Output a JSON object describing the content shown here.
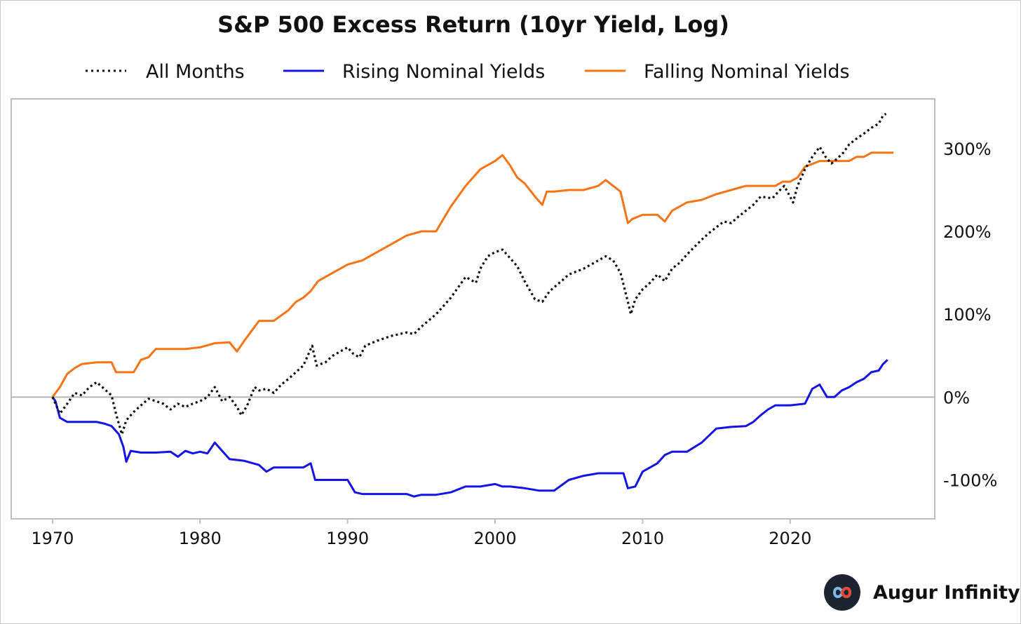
{
  "chart_data": {
    "type": "line",
    "title": "S&P 500 Excess Return (10yr Yield, Log)",
    "xlabel": "",
    "ylabel": "",
    "xlim": [
      1967.2,
      2029.8
    ],
    "ylim": [
      -147,
      360
    ],
    "x_ticks": [
      1970,
      1980,
      1990,
      2000,
      2010,
      2020
    ],
    "y_ticks": [
      300,
      200,
      100,
      0,
      -100
    ],
    "y_tick_labels": [
      "300%",
      "200%",
      "100%",
      "0%",
      "-100%"
    ],
    "zero_line": true,
    "grid": false,
    "legend_position": "top",
    "series": [
      {
        "name": "All Months",
        "color": "#111111",
        "style": "dotted",
        "points": [
          [
            1970.0,
            0
          ],
          [
            1970.5,
            -20
          ],
          [
            1971.0,
            -8
          ],
          [
            1971.5,
            5
          ],
          [
            1972.0,
            2
          ],
          [
            1972.5,
            12
          ],
          [
            1973.0,
            18
          ],
          [
            1973.5,
            10
          ],
          [
            1974.0,
            2
          ],
          [
            1974.3,
            -20
          ],
          [
            1974.7,
            -45
          ],
          [
            1975.0,
            -28
          ],
          [
            1975.5,
            -18
          ],
          [
            1976.0,
            -10
          ],
          [
            1976.5,
            -2
          ],
          [
            1977.0,
            -5
          ],
          [
            1977.5,
            -8
          ],
          [
            1978.0,
            -15
          ],
          [
            1978.5,
            -8
          ],
          [
            1979.0,
            -12
          ],
          [
            1979.5,
            -8
          ],
          [
            1980.0,
            -5
          ],
          [
            1980.5,
            0
          ],
          [
            1981.0,
            12
          ],
          [
            1981.5,
            -5
          ],
          [
            1982.0,
            0
          ],
          [
            1982.5,
            -12
          ],
          [
            1982.8,
            -22
          ],
          [
            1983.2,
            -10
          ],
          [
            1983.7,
            12
          ],
          [
            1984.0,
            8
          ],
          [
            1984.5,
            10
          ],
          [
            1985.0,
            5
          ],
          [
            1985.5,
            15
          ],
          [
            1986.0,
            22
          ],
          [
            1986.5,
            30
          ],
          [
            1987.0,
            38
          ],
          [
            1987.6,
            62
          ],
          [
            1987.9,
            38
          ],
          [
            1988.5,
            42
          ],
          [
            1989.0,
            50
          ],
          [
            1989.5,
            55
          ],
          [
            1990.0,
            60
          ],
          [
            1990.4,
            52
          ],
          [
            1990.8,
            48
          ],
          [
            1991.2,
            62
          ],
          [
            1992.0,
            68
          ],
          [
            1993.0,
            74
          ],
          [
            1994.0,
            78
          ],
          [
            1994.5,
            76
          ],
          [
            1995.0,
            85
          ],
          [
            1996.0,
            100
          ],
          [
            1997.0,
            120
          ],
          [
            1998.0,
            145
          ],
          [
            1998.7,
            138
          ],
          [
            1999.0,
            155
          ],
          [
            1999.5,
            170
          ],
          [
            2000.0,
            175
          ],
          [
            2000.5,
            178
          ],
          [
            2001.0,
            168
          ],
          [
            2001.5,
            158
          ],
          [
            2002.0,
            140
          ],
          [
            2002.7,
            118
          ],
          [
            2003.2,
            115
          ],
          [
            2003.7,
            128
          ],
          [
            2004.5,
            140
          ],
          [
            2005.0,
            148
          ],
          [
            2006.0,
            155
          ],
          [
            2007.0,
            165
          ],
          [
            2007.5,
            170
          ],
          [
            2008.0,
            165
          ],
          [
            2008.5,
            150
          ],
          [
            2009.0,
            115
          ],
          [
            2009.2,
            100
          ],
          [
            2009.5,
            118
          ],
          [
            2010.0,
            130
          ],
          [
            2010.5,
            138
          ],
          [
            2011.0,
            148
          ],
          [
            2011.5,
            140
          ],
          [
            2012.0,
            155
          ],
          [
            2012.5,
            162
          ],
          [
            2013.0,
            172
          ],
          [
            2014.0,
            190
          ],
          [
            2014.5,
            198
          ],
          [
            2015.0,
            205
          ],
          [
            2015.5,
            212
          ],
          [
            2016.0,
            210
          ],
          [
            2016.5,
            218
          ],
          [
            2017.0,
            225
          ],
          [
            2017.5,
            232
          ],
          [
            2018.0,
            242
          ],
          [
            2018.8,
            240
          ],
          [
            2019.2,
            248
          ],
          [
            2019.6,
            255
          ],
          [
            2020.2,
            235
          ],
          [
            2020.5,
            255
          ],
          [
            2021.0,
            275
          ],
          [
            2021.5,
            290
          ],
          [
            2022.0,
            302
          ],
          [
            2022.4,
            290
          ],
          [
            2022.8,
            282
          ],
          [
            2023.2,
            288
          ],
          [
            2023.6,
            295
          ],
          [
            2024.0,
            305
          ],
          [
            2024.5,
            312
          ],
          [
            2025.0,
            318
          ],
          [
            2025.5,
            325
          ],
          [
            2026.0,
            330
          ],
          [
            2026.3,
            340
          ],
          [
            2026.5,
            342
          ]
        ]
      },
      {
        "name": "Rising Nominal Yields",
        "color": "#1414e6",
        "style": "solid",
        "points": [
          [
            1970.0,
            0
          ],
          [
            1970.2,
            -5
          ],
          [
            1970.5,
            -25
          ],
          [
            1971.0,
            -30
          ],
          [
            1972.0,
            -30
          ],
          [
            1973.0,
            -30
          ],
          [
            1973.5,
            -32
          ],
          [
            1974.0,
            -35
          ],
          [
            1974.5,
            -45
          ],
          [
            1974.8,
            -60
          ],
          [
            1975.0,
            -78
          ],
          [
            1975.3,
            -65
          ],
          [
            1976.0,
            -67
          ],
          [
            1977.0,
            -67
          ],
          [
            1978.0,
            -66
          ],
          [
            1978.5,
            -72
          ],
          [
            1979.0,
            -65
          ],
          [
            1979.5,
            -68
          ],
          [
            1980.0,
            -66
          ],
          [
            1980.5,
            -68
          ],
          [
            1981.0,
            -55
          ],
          [
            1981.5,
            -65
          ],
          [
            1982.0,
            -75
          ],
          [
            1983.0,
            -77
          ],
          [
            1984.0,
            -82
          ],
          [
            1984.5,
            -90
          ],
          [
            1985.0,
            -85
          ],
          [
            1986.0,
            -85
          ],
          [
            1987.0,
            -85
          ],
          [
            1987.5,
            -80
          ],
          [
            1987.8,
            -100
          ],
          [
            1988.0,
            -100
          ],
          [
            1989.0,
            -100
          ],
          [
            1990.0,
            -100
          ],
          [
            1990.5,
            -115
          ],
          [
            1991.0,
            -117
          ],
          [
            1992.0,
            -117
          ],
          [
            1993.0,
            -117
          ],
          [
            1994.0,
            -117
          ],
          [
            1994.5,
            -120
          ],
          [
            1995.0,
            -118
          ],
          [
            1996.0,
            -118
          ],
          [
            1997.0,
            -115
          ],
          [
            1998.0,
            -108
          ],
          [
            1999.0,
            -108
          ],
          [
            2000.0,
            -105
          ],
          [
            2000.5,
            -108
          ],
          [
            2001.0,
            -108
          ],
          [
            2002.0,
            -110
          ],
          [
            2003.0,
            -113
          ],
          [
            2004.0,
            -113
          ],
          [
            2005.0,
            -100
          ],
          [
            2006.0,
            -95
          ],
          [
            2007.0,
            -92
          ],
          [
            2008.0,
            -92
          ],
          [
            2008.7,
            -92
          ],
          [
            2009.0,
            -110
          ],
          [
            2009.5,
            -108
          ],
          [
            2010.0,
            -90
          ],
          [
            2011.0,
            -80
          ],
          [
            2011.5,
            -70
          ],
          [
            2012.0,
            -66
          ],
          [
            2013.0,
            -66
          ],
          [
            2014.0,
            -55
          ],
          [
            2015.0,
            -38
          ],
          [
            2016.0,
            -36
          ],
          [
            2017.0,
            -35
          ],
          [
            2017.5,
            -30
          ],
          [
            2018.0,
            -22
          ],
          [
            2018.5,
            -15
          ],
          [
            2019.0,
            -10
          ],
          [
            2020.0,
            -10
          ],
          [
            2021.0,
            -8
          ],
          [
            2021.5,
            10
          ],
          [
            2022.0,
            15
          ],
          [
            2022.5,
            0
          ],
          [
            2023.0,
            0
          ],
          [
            2023.5,
            8
          ],
          [
            2024.0,
            12
          ],
          [
            2024.5,
            18
          ],
          [
            2025.0,
            22
          ],
          [
            2025.5,
            30
          ],
          [
            2026.0,
            32
          ],
          [
            2026.3,
            40
          ],
          [
            2026.6,
            45
          ]
        ]
      },
      {
        "name": "Falling Nominal Yields",
        "color": "#f77414",
        "style": "solid",
        "points": [
          [
            1970.0,
            0
          ],
          [
            1970.5,
            12
          ],
          [
            1971.0,
            28
          ],
          [
            1971.5,
            35
          ],
          [
            1972.0,
            40
          ],
          [
            1973.0,
            42
          ],
          [
            1974.0,
            42
          ],
          [
            1974.3,
            30
          ],
          [
            1975.5,
            30
          ],
          [
            1976.0,
            45
          ],
          [
            1976.5,
            48
          ],
          [
            1977.0,
            58
          ],
          [
            1978.0,
            58
          ],
          [
            1979.0,
            58
          ],
          [
            1980.0,
            60
          ],
          [
            1981.0,
            65
          ],
          [
            1982.0,
            66
          ],
          [
            1982.5,
            55
          ],
          [
            1983.0,
            68
          ],
          [
            1983.5,
            80
          ],
          [
            1984.0,
            92
          ],
          [
            1985.0,
            92
          ],
          [
            1986.0,
            105
          ],
          [
            1986.5,
            115
          ],
          [
            1987.0,
            120
          ],
          [
            1987.5,
            128
          ],
          [
            1988.0,
            140
          ],
          [
            1989.0,
            150
          ],
          [
            1990.0,
            160
          ],
          [
            1991.0,
            165
          ],
          [
            1992.0,
            175
          ],
          [
            1993.0,
            185
          ],
          [
            1994.0,
            195
          ],
          [
            1995.0,
            200
          ],
          [
            1996.0,
            200
          ],
          [
            1997.0,
            230
          ],
          [
            1998.0,
            255
          ],
          [
            1999.0,
            275
          ],
          [
            1999.5,
            280
          ],
          [
            2000.0,
            285
          ],
          [
            2000.5,
            292
          ],
          [
            2001.0,
            280
          ],
          [
            2001.5,
            265
          ],
          [
            2002.0,
            258
          ],
          [
            2002.8,
            240
          ],
          [
            2003.2,
            232
          ],
          [
            2003.5,
            248
          ],
          [
            2004.0,
            248
          ],
          [
            2005.0,
            250
          ],
          [
            2006.0,
            250
          ],
          [
            2007.0,
            255
          ],
          [
            2007.5,
            262
          ],
          [
            2008.0,
            255
          ],
          [
            2008.5,
            248
          ],
          [
            2009.0,
            210
          ],
          [
            2009.3,
            215
          ],
          [
            2010.0,
            220
          ],
          [
            2011.0,
            220
          ],
          [
            2011.5,
            212
          ],
          [
            2012.0,
            225
          ],
          [
            2013.0,
            235
          ],
          [
            2014.0,
            238
          ],
          [
            2015.0,
            245
          ],
          [
            2016.0,
            250
          ],
          [
            2017.0,
            255
          ],
          [
            2018.0,
            255
          ],
          [
            2019.0,
            255
          ],
          [
            2019.5,
            260
          ],
          [
            2020.0,
            260
          ],
          [
            2020.5,
            265
          ],
          [
            2021.0,
            278
          ],
          [
            2022.0,
            285
          ],
          [
            2023.0,
            285
          ],
          [
            2023.5,
            285
          ],
          [
            2024.0,
            285
          ],
          [
            2024.5,
            290
          ],
          [
            2025.0,
            290
          ],
          [
            2025.5,
            295
          ],
          [
            2026.0,
            295
          ],
          [
            2026.5,
            295
          ],
          [
            2027.0,
            295
          ]
        ]
      }
    ]
  },
  "legend": {
    "items": [
      {
        "label": "All Months",
        "color": "#111111",
        "style": "dotted"
      },
      {
        "label": "Rising Nominal Yields",
        "color": "#1414e6",
        "style": "solid"
      },
      {
        "label": "Falling Nominal Yields",
        "color": "#f77414",
        "style": "solid"
      }
    ]
  },
  "brand": {
    "name": "Augur Infinity",
    "icon": "infinity-logo-icon",
    "logo_bg": "#1c2431",
    "logo_accent_a": "#e64a2e",
    "logo_accent_b": "#7fb8e8"
  }
}
